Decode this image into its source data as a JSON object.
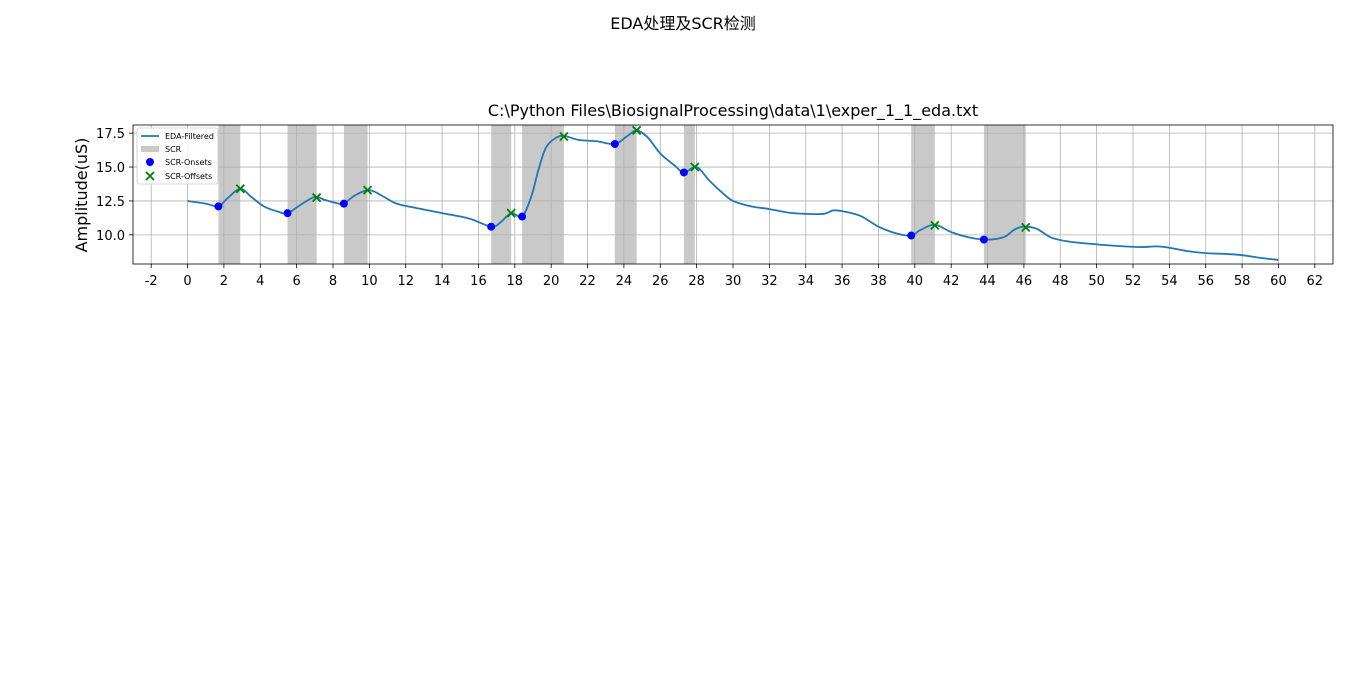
{
  "figure": {
    "suptitle": "EDA处理及SCR检测"
  },
  "chart_data": {
    "type": "line",
    "title": "C:\\Python Files\\BiosignalProcessing\\data\\1\\exper_1_1_eda.txt",
    "xlabel": "",
    "ylabel": "Amplitude(uS)",
    "xlim": [
      -3,
      63
    ],
    "ylim": [
      7.85,
      18.1
    ],
    "xticks": [
      "-2",
      "0",
      "2",
      "4",
      "6",
      "8",
      "10",
      "12",
      "14",
      "16",
      "18",
      "20",
      "22",
      "24",
      "26",
      "28",
      "30",
      "32",
      "34",
      "36",
      "38",
      "40",
      "42",
      "44",
      "46",
      "48",
      "50",
      "52",
      "54",
      "56",
      "58",
      "60",
      "62"
    ],
    "yticks": [
      "10.0",
      "12.5",
      "15.0",
      "17.5"
    ],
    "grid": true,
    "legend_position": "upper-left",
    "legend": [
      "EDA-Filtered",
      "SCR",
      "SCR-Onsets",
      "SCR-Offsets"
    ],
    "colors": {
      "line": "#1f77b4",
      "scr": "#c9c9c9",
      "onset": "#0000ff",
      "offset": "#008000"
    },
    "series": [
      {
        "name": "EDA-Filtered",
        "x": [
          0,
          1,
          1.7,
          2.2,
          2.9,
          3.5,
          4.2,
          5,
          5.5,
          6.2,
          7,
          7.5,
          8.3,
          8.6,
          9.2,
          10,
          10.8,
          11.5,
          12.5,
          14,
          15.5,
          16.7,
          17.2,
          17.8,
          18.4,
          18.9,
          19.3,
          19.7,
          20.2,
          20.7,
          21.5,
          22.5,
          23.5,
          24.2,
          24.7,
          25.3,
          26,
          26.8,
          27.3,
          28,
          28.7,
          29.5,
          30,
          31,
          32,
          33,
          34,
          35,
          35.5,
          36,
          37,
          38,
          39,
          39.8,
          40.3,
          41.1,
          42,
          43,
          43.8,
          44.5,
          45,
          45.5,
          46,
          46.7,
          47.5,
          48.5,
          50,
          51.5,
          52.5,
          53.3,
          54,
          55,
          56,
          57,
          58,
          59,
          60
        ],
        "y": [
          12.5,
          12.3,
          12.1,
          12.7,
          13.4,
          12.8,
          12.1,
          11.7,
          11.6,
          12.2,
          12.8,
          12.6,
          12.3,
          12.3,
          12.9,
          13.3,
          12.8,
          12.3,
          12.0,
          11.6,
          11.2,
          10.6,
          10.9,
          11.6,
          11.35,
          12.8,
          14.8,
          16.4,
          17.1,
          17.3,
          17.0,
          16.9,
          16.7,
          17.3,
          17.7,
          17.2,
          16.0,
          15.1,
          14.6,
          15.0,
          14.0,
          13.0,
          12.5,
          12.1,
          11.9,
          11.65,
          11.55,
          11.55,
          11.8,
          11.75,
          11.4,
          10.6,
          10.1,
          9.95,
          10.35,
          10.75,
          10.2,
          9.8,
          9.65,
          9.7,
          9.9,
          10.4,
          10.6,
          10.45,
          9.8,
          9.5,
          9.3,
          9.15,
          9.1,
          9.15,
          9.05,
          8.8,
          8.65,
          8.6,
          8.5,
          8.3,
          8.15
        ]
      }
    ],
    "scr_regions": [
      [
        1.7,
        2.9
      ],
      [
        5.5,
        7.1
      ],
      [
        8.6,
        9.9
      ],
      [
        16.7,
        17.8
      ],
      [
        18.4,
        20.7
      ],
      [
        23.5,
        24.7
      ],
      [
        27.3,
        27.9
      ],
      [
        39.8,
        41.1
      ],
      [
        43.8,
        46.1
      ]
    ],
    "onsets": {
      "x": [
        1.7,
        5.5,
        8.6,
        16.7,
        18.4,
        23.5,
        27.3,
        39.8,
        43.8
      ],
      "y": [
        12.1,
        11.6,
        12.3,
        10.6,
        11.35,
        16.7,
        14.6,
        9.95,
        9.65
      ]
    },
    "offsets": {
      "x": [
        2.9,
        7.1,
        9.9,
        17.8,
        20.7,
        24.7,
        27.9,
        41.1,
        46.1
      ],
      "y": [
        13.4,
        12.75,
        13.3,
        11.6,
        17.25,
        17.7,
        15.0,
        10.7,
        10.55
      ]
    }
  }
}
